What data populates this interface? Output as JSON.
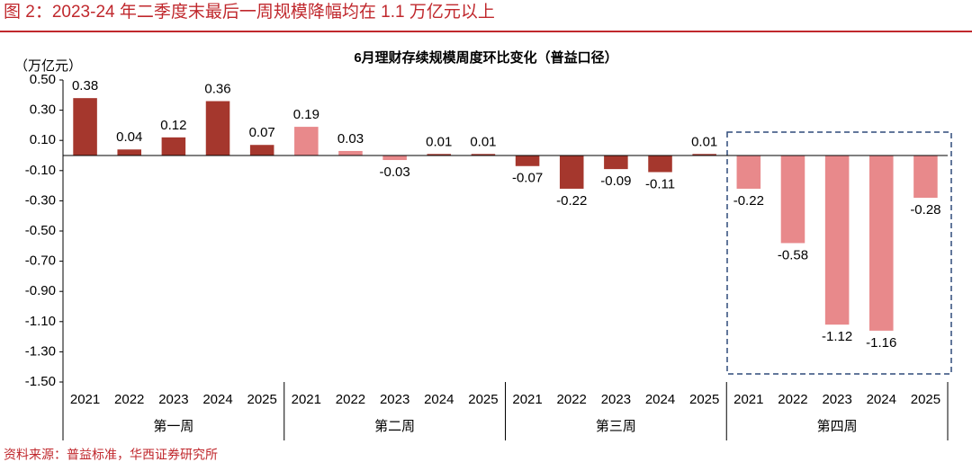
{
  "header": "图 2：2023-24 年二季度末最后一周规模降幅均在 1.1 万亿元以上",
  "source": "资料来源：普益标准，华西证券研究所",
  "chart_data": {
    "type": "bar",
    "title": "6月理财存续规模周度环比变化（普益口径）",
    "ylabel": "（万亿元）",
    "categories": [
      "2021",
      "2022",
      "2023",
      "2024",
      "2025",
      "2021",
      "2022",
      "2023",
      "2024",
      "2025",
      "2021",
      "2022",
      "2023",
      "2024",
      "2025",
      "2021",
      "2022",
      "2023",
      "2024",
      "2025"
    ],
    "groups": [
      "第一周",
      "第二周",
      "第三周",
      "第四周"
    ],
    "values": [
      0.38,
      0.04,
      0.12,
      0.36,
      0.07,
      0.19,
      0.03,
      -0.03,
      0.01,
      0.01,
      -0.07,
      -0.22,
      -0.09,
      -0.11,
      0.01,
      -0.22,
      -0.58,
      -1.12,
      -1.16,
      -0.28
    ],
    "colors": [
      "#a5372d",
      "#a5372d",
      "#a5372d",
      "#a5372d",
      "#a5372d",
      "#e8898b",
      "#e8898b",
      "#e8898b",
      "#a5372d",
      "#a5372d",
      "#a5372d",
      "#a5372d",
      "#a5372d",
      "#a5372d",
      "#a5372d",
      "#e8898b",
      "#e8898b",
      "#e8898b",
      "#e8898b",
      "#e8898b"
    ],
    "ylim": [
      -1.5,
      0.5
    ],
    "yticks": [
      {
        "value": 0.5,
        "label": "0.50"
      },
      {
        "value": 0.3,
        "label": "0.30"
      },
      {
        "value": 0.1,
        "label": "0.10"
      },
      {
        "value": -0.1,
        "label": "-0.10"
      },
      {
        "value": -0.3,
        "label": "-0.30"
      },
      {
        "value": -0.5,
        "label": "-0.50"
      },
      {
        "value": -0.7,
        "label": "-0.70"
      },
      {
        "value": -0.9,
        "label": "-0.90"
      },
      {
        "value": -1.1,
        "label": "-1.10"
      },
      {
        "value": -1.3,
        "label": "-1.30"
      },
      {
        "value": -1.5,
        "label": "-1.50"
      }
    ]
  }
}
